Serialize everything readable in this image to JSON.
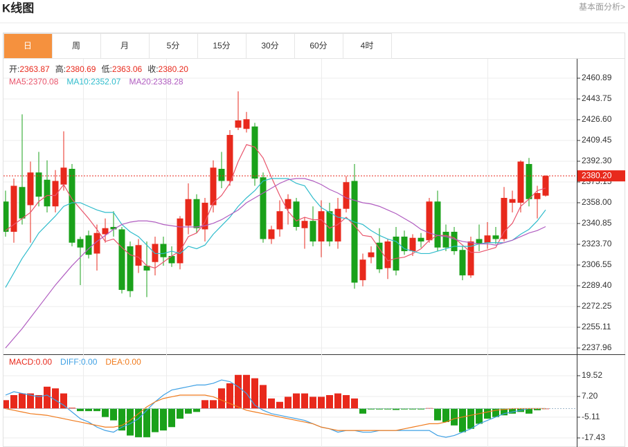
{
  "chart_data": {
    "type": "candlestick",
    "title": "K线图",
    "link": "基本面分析>",
    "tabs": [
      "日",
      "周",
      "月",
      "5分",
      "15分",
      "30分",
      "60分",
      "4时"
    ],
    "active_tab": 0,
    "up_color": "#e8291c",
    "down_color": "#1aa11a",
    "grid": true,
    "summary": [
      {
        "name": "开:",
        "value": 2363.87
      },
      {
        "name": "高:",
        "value": 2380.69
      },
      {
        "name": "低:",
        "value": 2363.06
      },
      {
        "name": "收:",
        "value": {
          "value": 2380.2,
          "label": "2380.20"
        }
      }
    ],
    "last_price": {
      "value": 2380.2,
      "label": "2380.20"
    },
    "ylim": [
      2232.8,
      2476.9
    ],
    "yticks": [
      2460.89,
      2443.75,
      {
        "value": 2426.6,
        "label": "2426.60"
      },
      2409.45,
      {
        "value": 2392.3,
        "label": "2392.30"
      },
      2375.15,
      {
        "value": 2358,
        "label": "2358.00"
      },
      2340.85,
      {
        "value": 2323.7,
        "label": "2323.70"
      },
      2306.55,
      {
        "value": 2289.4,
        "label": "2289.40"
      },
      2272.25,
      2255.11,
      2237.96
    ],
    "ohlc": [
      [
        2359,
        2368,
        2330,
        2334
      ],
      [
        2334,
        2378,
        2325,
        2372
      ],
      [
        2371,
        2431,
        2340,
        2345
      ],
      [
        2356,
        2392,
        2325,
        2383
      ],
      [
        2383,
        2400,
        2355,
        2363
      ],
      [
        2377,
        2393,
        2350,
        2355
      ],
      [
        2355,
        2385,
        2350,
        2376
      ],
      [
        2373,
        2417,
        2368,
        2387
      ],
      [
        2386,
        2390,
        2322,
        2325
      ],
      [
        2328,
        2330,
        2290,
        2321
      ],
      [
        2331,
        2335,
        2312,
        2315
      ],
      [
        2316,
        2340,
        2302,
        2333
      ],
      [
        2332,
        2345,
        2325,
        2337
      ],
      [
        2338,
        2351,
        2330,
        2336
      ],
      [
        2336,
        2338,
        2283,
        2286
      ],
      [
        2322,
        2326,
        2280,
        2285
      ],
      [
        2306,
        2328,
        2300,
        2323
      ],
      [
        2306,
        2326,
        2280,
        2302
      ],
      [
        2309,
        2330,
        2298,
        2324
      ],
      [
        2324,
        2330,
        2306,
        2313
      ],
      [
        2314,
        2322,
        2305,
        2308
      ],
      [
        2308,
        2347,
        2303,
        2345
      ],
      [
        2339,
        2374,
        2332,
        2361
      ],
      [
        2361,
        2365,
        2333,
        2337
      ],
      [
        2336,
        2362,
        2326,
        2358
      ],
      [
        2356,
        2393,
        2350,
        2387
      ],
      [
        2386,
        2400,
        2370,
        2376
      ],
      [
        2376,
        2418,
        2372,
        2414
      ],
      [
        2420,
        2450,
        2418,
        2426
      ],
      [
        2419,
        2433,
        2416,
        2427
      ],
      [
        2421,
        2424,
        2372,
        2378
      ],
      [
        2379,
        2383,
        2325,
        2328
      ],
      [
        2328,
        2339,
        2324,
        2336
      ],
      [
        2336,
        2360,
        2330,
        2351
      ],
      [
        2353,
        2365,
        2340,
        2361
      ],
      [
        2359,
        2362,
        2335,
        2338
      ],
      [
        2337,
        2346,
        2320,
        2343
      ],
      [
        2343,
        2355,
        2322,
        2326
      ],
      [
        2326,
        2360,
        2313,
        2351
      ],
      [
        2351,
        2358,
        2322,
        2326
      ],
      [
        2326,
        2362,
        2320,
        2353
      ],
      [
        2353,
        2380,
        2350,
        2375
      ],
      [
        2376,
        2390,
        2287,
        2292
      ],
      [
        2294,
        2316,
        2289,
        2311
      ],
      [
        2313,
        2322,
        2308,
        2317
      ],
      [
        2325,
        2337,
        2300,
        2303
      ],
      [
        2304,
        2328,
        2295,
        2326
      ],
      [
        2330,
        2338,
        2298,
        2302
      ],
      [
        2330,
        2335,
        2315,
        2318
      ],
      [
        2318,
        2332,
        2314,
        2329
      ],
      [
        2329,
        2333,
        2321,
        2326
      ],
      [
        2327,
        2362,
        2325,
        2359
      ],
      [
        2359,
        2368,
        2318,
        2321
      ],
      [
        2334,
        2340,
        2318,
        2321
      ],
      [
        2334,
        2338,
        2315,
        2318
      ],
      [
        2319,
        2322,
        2294,
        2298
      ],
      [
        2298,
        2330,
        2296,
        2326
      ],
      [
        2328,
        2340,
        2318,
        2324
      ],
      [
        2325,
        2342,
        2320,
        2331
      ],
      [
        2331,
        2338,
        2324,
        2328
      ],
      [
        2328,
        2371,
        2326,
        2362
      ],
      [
        2358,
        2368,
        2350,
        2361
      ],
      [
        2358,
        2393,
        2350,
        2392
      ],
      [
        2390,
        2395,
        2355,
        2361
      ],
      [
        2361,
        2372,
        2345,
        2366
      ],
      [
        2363.87,
        2380.69,
        2363.06,
        2380.2
      ]
    ],
    "moving_averages": [
      {
        "name": "MA5:",
        "value": 2370.08,
        "color": "#e9546b",
        "values": [
          2335,
          2340,
          2345,
          2350,
          2359,
          2364,
          2364,
          2373,
          2361,
          2353,
          2345,
          2336,
          2326,
          2328,
          2321,
          2315,
          2313,
          2306,
          2304,
          2309,
          2314,
          2318,
          2330,
          2333,
          2342,
          2358,
          2364,
          2374,
          2392,
          2406,
          2404,
          2395,
          2379,
          2364,
          2351,
          2343,
          2346,
          2344,
          2344,
          2337,
          2340,
          2346,
          2339,
          2331,
          2330,
          2320,
          2310,
          2312,
          2313,
          2316,
          2320,
          2327,
          2331,
          2331,
          2329,
          2323,
          2317,
          2317,
          2319,
          2321,
          2334,
          2341,
          2355,
          2361,
          2368,
          2370.08
        ]
      },
      {
        "name": "MA10:",
        "value": 2352.07,
        "color": "#2fbccc",
        "values": [
          2288,
          2300,
          2312,
          2322,
          2333,
          2340,
          2347,
          2355,
          2358,
          2358,
          2355,
          2352,
          2350,
          2350,
          2340,
          2334,
          2330,
          2323,
          2316,
          2316,
          2318,
          2316,
          2322,
          2320,
          2323,
          2332,
          2339,
          2346,
          2355,
          2362,
          2368,
          2376,
          2378,
          2378,
          2378,
          2374,
          2372,
          2362,
          2354,
          2350,
          2346,
          2345,
          2342,
          2340,
          2335,
          2331,
          2328,
          2326,
          2320,
          2318,
          2316,
          2316,
          2318,
          2320,
          2322,
          2322,
          2322,
          2324,
          2325,
          2325,
          2325,
          2327,
          2332,
          2336,
          2343,
          2352.07
        ]
      },
      {
        "name": "MA20:",
        "value": 2338.28,
        "color": "#b05cc0",
        "values": [
          2238,
          2246,
          2254,
          2263,
          2272,
          2281,
          2290,
          2298,
          2306,
          2313,
          2320,
          2326,
          2331,
          2336,
          2340,
          2342,
          2343,
          2343,
          2342,
          2340,
          2339,
          2338,
          2338,
          2338,
          2339,
          2341,
          2344,
          2348,
          2352,
          2358,
          2362,
          2366,
          2370,
          2374,
          2377,
          2378,
          2378,
          2376,
          2373,
          2369,
          2366,
          2362,
          2360,
          2358,
          2357,
          2355,
          2352,
          2349,
          2345,
          2341,
          2336,
          2333,
          2331,
          2330,
          2328,
          2326,
          2325,
          2324,
          2324,
          2323,
          2325,
          2327,
          2330,
          2333,
          2335,
          2338.28
        ]
      }
    ],
    "macd": {
      "ylim": [
        -22.8,
        31.0
      ],
      "yticks": [
        19.52,
        {
          "value": 7.2,
          "label": "7.20"
        },
        -5.11,
        -17.43
      ],
      "negative_color": "#1aa11a",
      "series": [
        {
          "name": "MACD:",
          "value": {
            "value": 0,
            "label": "0.00"
          },
          "color": "#e8291c",
          "style": "bar",
          "values": [
            5,
            8,
            9,
            9,
            8,
            13,
            12,
            9,
            0.5,
            -1.5,
            -1.5,
            -1.5,
            -5,
            -7,
            -13,
            -16,
            -17,
            -17,
            -14,
            -13,
            -11,
            -6,
            -3,
            -2,
            5,
            5,
            12,
            15,
            20,
            20,
            18,
            14,
            6,
            4,
            7,
            9,
            9,
            7,
            7,
            8,
            9,
            8,
            6,
            -3,
            -0.5,
            -0.5,
            -0.5,
            -0.8,
            -0.5,
            -0.5,
            -0.5,
            0.3,
            -7,
            -8,
            -10,
            -14,
            -12,
            -9,
            -6,
            -5,
            -4,
            -3,
            -2,
            -3,
            -1,
            0
          ]
        },
        {
          "name": "DIFF:",
          "value": {
            "value": 0,
            "label": "0.00"
          },
          "color": "#3ea0e4",
          "style": "line",
          "values": [
            8,
            10,
            9,
            8,
            7,
            8,
            5,
            2,
            -2,
            -6,
            -8,
            -11,
            -13,
            -14,
            -11,
            -9,
            -6,
            -1,
            4,
            8,
            11,
            12,
            13,
            14,
            14,
            15,
            17,
            16,
            13,
            9,
            2,
            -1,
            -3,
            -4,
            -5,
            -6,
            -7,
            -9,
            -11,
            -12,
            -14,
            -13,
            -13,
            -14,
            -14,
            -13,
            -13,
            -13,
            -13,
            -13,
            -13,
            -13,
            -16,
            -17,
            -16,
            -14,
            -12,
            -9,
            -7,
            -5,
            -3,
            -2,
            -1,
            0,
            0,
            0
          ]
        },
        {
          "name": "DEA:",
          "value": {
            "value": 0,
            "label": "0.00"
          },
          "color": "#f07b1d",
          "style": "line",
          "values": [
            0,
            -1,
            -2,
            -3,
            -3.5,
            -4,
            -5,
            -6,
            -7,
            -8,
            -9,
            -10,
            -11,
            -11,
            -10,
            -7,
            -3,
            1,
            4,
            6,
            7,
            8,
            8,
            8,
            8,
            7,
            5,
            3,
            1,
            -1,
            -2,
            -3,
            -4,
            -5,
            -6,
            -7,
            -8,
            -9,
            -11,
            -12,
            -13,
            -13,
            -13,
            -13,
            -13,
            -13,
            -13,
            -13,
            -12,
            -11,
            -10,
            -9,
            -9,
            -8,
            -6,
            -5,
            -4,
            -3,
            -2,
            -1,
            -0.5,
            0,
            0,
            0,
            0,
            0
          ]
        }
      ]
    }
  }
}
